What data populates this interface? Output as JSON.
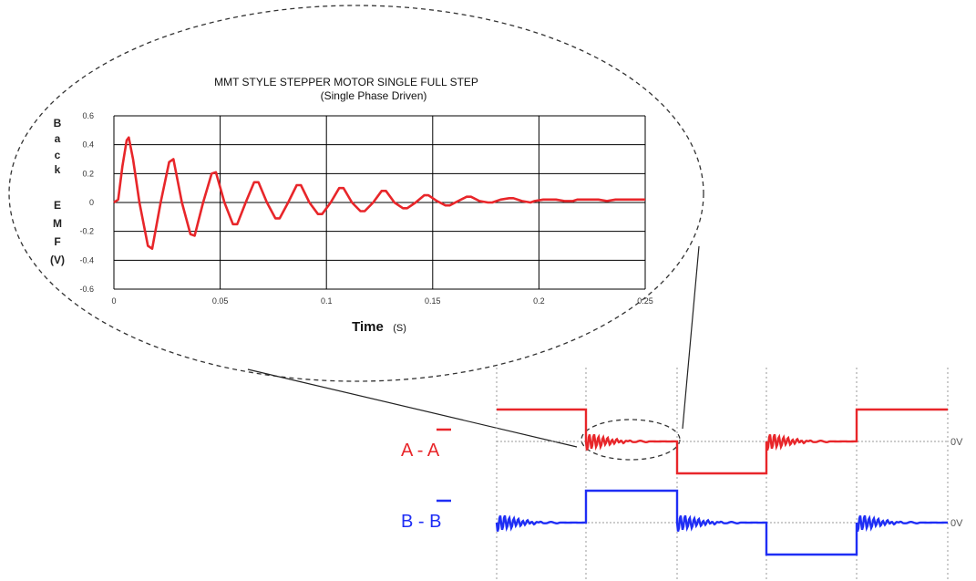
{
  "chart_data": [
    {
      "type": "line",
      "title": "MMT STYLE STEPPER MOTOR SINGLE FULL STEP",
      "subtitle": "(Single Phase Driven)",
      "ylabel_letters": [
        "B",
        "a",
        "c",
        "k",
        "E",
        "M",
        "F",
        "(V)"
      ],
      "xlabel": "Time",
      "xunit": "(S)",
      "xlim": [
        0,
        0.25
      ],
      "ylim": [
        -0.6,
        0.6
      ],
      "x_ticks": [
        "0",
        "0.05",
        "0.1",
        "0.15",
        "0.2",
        "0.25"
      ],
      "y_ticks": [
        "0.6",
        "0.4",
        "0.2",
        "0",
        "-0.2",
        "-0.4",
        "-0.6"
      ],
      "grid": true,
      "series_color": "#e8262a",
      "series": [
        {
          "x": [
            0,
            0.002,
            0.004,
            0.006,
            0.007,
            0.009,
            0.012,
            0.016,
            0.018,
            0.022,
            0.026,
            0.028,
            0.032,
            0.036,
            0.038,
            0.042,
            0.046,
            0.048,
            0.052,
            0.056,
            0.058,
            0.062,
            0.066,
            0.068,
            0.072,
            0.076,
            0.078,
            0.082,
            0.086,
            0.088,
            0.092,
            0.096,
            0.098,
            0.102,
            0.106,
            0.108,
            0.112,
            0.116,
            0.118,
            0.122,
            0.126,
            0.128,
            0.132,
            0.136,
            0.138,
            0.142,
            0.146,
            0.148,
            0.152,
            0.156,
            0.158,
            0.162,
            0.166,
            0.168,
            0.172,
            0.176,
            0.178,
            0.182,
            0.186,
            0.188,
            0.192,
            0.196,
            0.198,
            0.202,
            0.206,
            0.208,
            0.212,
            0.216,
            0.218,
            0.222,
            0.226,
            0.228,
            0.232,
            0.236,
            0.238,
            0.242,
            0.246,
            0.25
          ],
          "y": [
            0,
            0.02,
            0.25,
            0.43,
            0.45,
            0.3,
            0.0,
            -0.3,
            -0.32,
            0.0,
            0.28,
            0.3,
            0.0,
            -0.22,
            -0.23,
            0.0,
            0.2,
            0.21,
            0.0,
            -0.15,
            -0.15,
            0.0,
            0.14,
            0.14,
            0.0,
            -0.11,
            -0.11,
            0.0,
            0.12,
            0.12,
            0.0,
            -0.08,
            -0.08,
            0.0,
            0.1,
            0.1,
            0.0,
            -0.06,
            -0.06,
            0.0,
            0.08,
            0.08,
            0.0,
            -0.04,
            -0.04,
            0.0,
            0.05,
            0.05,
            0.01,
            -0.02,
            -0.02,
            0.01,
            0.04,
            0.04,
            0.01,
            0.0,
            0.0,
            0.02,
            0.03,
            0.03,
            0.01,
            0.0,
            0.01,
            0.02,
            0.02,
            0.02,
            0.01,
            0.01,
            0.02,
            0.02,
            0.02,
            0.02,
            0.01,
            0.02,
            0.02,
            0.02,
            0.02,
            0.02
          ]
        }
      ]
    },
    {
      "type": "line",
      "x_grid_count": 5,
      "series": [
        {
          "name": "A - A",
          "label_main": "A - ",
          "label_bar": "A",
          "color": "#e8262a",
          "zero_label": "0V",
          "levels": [
            1,
            0,
            -1,
            0,
            1
          ]
        },
        {
          "name": "B - B",
          "label_main": "B - ",
          "label_bar": "B",
          "color": "#1f2ef5",
          "zero_label": "0V",
          "levels": [
            0,
            1,
            0,
            -1,
            0
          ]
        }
      ]
    }
  ],
  "colors": {
    "phase_a": "#e8262a",
    "phase_b": "#1f2ef5",
    "grid": "#000000",
    "guide": "#9a9a9a"
  }
}
